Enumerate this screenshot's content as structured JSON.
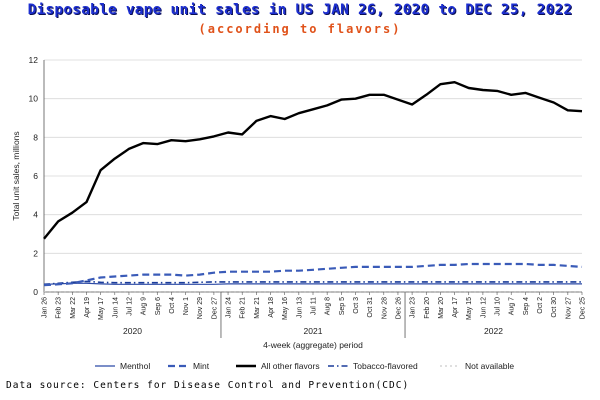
{
  "header": {
    "title": "Disposable vape unit sales in US JAN 26, 2020 to DEC 25, 2022",
    "subtitle": "(according to flavors)"
  },
  "footer": {
    "source": "Data source: Centers for Disease Control and Prevention(CDC)"
  },
  "colors": {
    "title": "#1d2fd0",
    "subtitle": "#e0521a",
    "menthol": "#2c4aa6",
    "mint": "#3a5bb8",
    "other": "#000000",
    "tobacco": "#1a3c9a",
    "not_available": "#bfbfbf",
    "grid": "#d9d9d9"
  },
  "chart_data": {
    "type": "line",
    "title": "",
    "ylabel": "Total unit sales, millions",
    "xlabel": "4-week (aggregate) period",
    "ylim": [
      0,
      12
    ],
    "yticks": [
      0,
      2,
      4,
      6,
      8,
      10,
      12
    ],
    "grid": "horizontal",
    "legend_position": "bottom",
    "categories": [
      "Jan 26",
      "Feb 23",
      "Mar 22",
      "Apr 19",
      "May 17",
      "Jun 14",
      "Jul 12",
      "Aug 9",
      "Sep 6",
      "Oct 4",
      "Nov 1",
      "Nov 29",
      "Dec 27",
      "Jan 24",
      "Feb 21",
      "Mar 21",
      "Apr 18",
      "May 16",
      "Jun 13",
      "Jul 11",
      "Aug 8",
      "Sep 5",
      "Oct 3",
      "Oct 31",
      "Nov 28",
      "Dec 26",
      "Jan 23",
      "Feb 20",
      "Mar 20",
      "Apr 17",
      "May 15",
      "Jun 12",
      "Jul 10",
      "Aug 7",
      "Sep 4",
      "Oct 2",
      "Oct 30",
      "Nov 27",
      "Dec 25"
    ],
    "year_groups": [
      {
        "label": "2020",
        "start": 0,
        "end": 12
      },
      {
        "label": "2021",
        "start": 13,
        "end": 25
      },
      {
        "label": "2022",
        "start": 26,
        "end": 38
      }
    ],
    "series": [
      {
        "name": "Menthol",
        "style": "solid-thin",
        "values": [
          0.4,
          0.42,
          0.45,
          0.45,
          0.42,
          0.4,
          0.4,
          0.4,
          0.4,
          0.4,
          0.4,
          0.4,
          0.4,
          0.42,
          0.42,
          0.42,
          0.42,
          0.42,
          0.42,
          0.42,
          0.42,
          0.42,
          0.42,
          0.42,
          0.42,
          0.42,
          0.42,
          0.42,
          0.42,
          0.42,
          0.42,
          0.42,
          0.42,
          0.42,
          0.42,
          0.42,
          0.42,
          0.42,
          0.42
        ]
      },
      {
        "name": "Mint",
        "style": "dashed",
        "values": [
          0.35,
          0.4,
          0.45,
          0.6,
          0.75,
          0.8,
          0.85,
          0.9,
          0.9,
          0.9,
          0.85,
          0.9,
          1.0,
          1.05,
          1.05,
          1.05,
          1.05,
          1.1,
          1.1,
          1.15,
          1.2,
          1.25,
          1.3,
          1.3,
          1.3,
          1.3,
          1.3,
          1.35,
          1.4,
          1.4,
          1.45,
          1.45,
          1.45,
          1.45,
          1.45,
          1.4,
          1.4,
          1.35,
          1.3
        ]
      },
      {
        "name": "All other flavors",
        "style": "solid-thick",
        "values": [
          2.75,
          3.65,
          4.1,
          4.65,
          6.3,
          6.9,
          7.4,
          7.7,
          7.65,
          7.85,
          7.8,
          7.9,
          8.05,
          8.25,
          8.15,
          8.85,
          9.1,
          8.95,
          9.25,
          9.45,
          9.65,
          9.95,
          10.0,
          10.2,
          10.2,
          9.95,
          9.7,
          10.2,
          10.75,
          10.85,
          10.55,
          10.45,
          10.4,
          10.2,
          10.3,
          10.05,
          9.8,
          9.4,
          9.35
        ]
      },
      {
        "name": "Tobacco-flavored",
        "style": "dash-dot",
        "values": [
          0.4,
          0.45,
          0.5,
          0.55,
          0.5,
          0.48,
          0.48,
          0.48,
          0.48,
          0.48,
          0.48,
          0.5,
          0.52,
          0.52,
          0.52,
          0.52,
          0.52,
          0.52,
          0.52,
          0.52,
          0.52,
          0.52,
          0.52,
          0.52,
          0.52,
          0.52,
          0.52,
          0.52,
          0.52,
          0.52,
          0.52,
          0.52,
          0.52,
          0.52,
          0.52,
          0.52,
          0.52,
          0.52,
          0.52
        ]
      },
      {
        "name": "Not available",
        "style": "dotted-light",
        "values": [
          0.02,
          0.02,
          0.02,
          0.02,
          0.02,
          0.02,
          0.02,
          0.02,
          0.02,
          0.02,
          0.02,
          0.02,
          0.02,
          0.02,
          0.02,
          0.02,
          0.02,
          0.02,
          0.02,
          0.02,
          0.02,
          0.02,
          0.02,
          0.02,
          0.02,
          0.02,
          0.02,
          0.02,
          0.02,
          0.02,
          0.02,
          0.02,
          0.02,
          0.02,
          0.02,
          0.02,
          0.02,
          0.02,
          0.02
        ]
      }
    ]
  }
}
